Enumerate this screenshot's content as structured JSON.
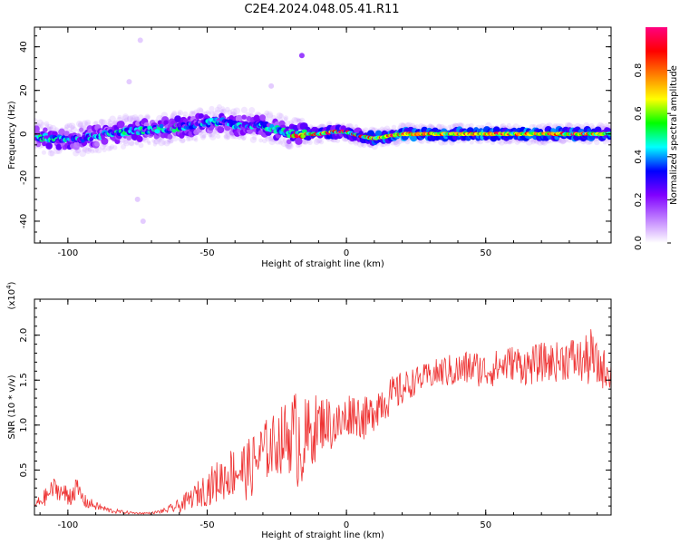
{
  "title": "C2E4.2024.048.05.41.R11",
  "chart_data": [
    {
      "type": "heatmap",
      "xlabel": "Height of straight line (km)",
      "ylabel": "Frequency (Hz)",
      "xlim": [
        -112,
        95
      ],
      "ylim": [
        -50,
        49
      ],
      "x_ticks": [
        -100,
        -50,
        0,
        50
      ],
      "y_ticks": [
        -40,
        -20,
        0,
        20,
        40
      ],
      "colorbar": {
        "label": "Normalized spectral amplitude",
        "range": [
          0.0,
          1.0
        ],
        "ticks": [
          0.0,
          0.2,
          0.4,
          0.6,
          0.8
        ],
        "colors": [
          "#ffffff",
          "#c080ff",
          "#8000ff",
          "#0000ff",
          "#00ffff",
          "#00ff00",
          "#ffff00",
          "#ff8000",
          "#ff0000",
          "#ff0080"
        ]
      },
      "ridge": {
        "x": [
          -112,
          -100,
          -90,
          -80,
          -70,
          -60,
          -50,
          -45,
          -40,
          -30,
          -25,
          -20,
          -15,
          -10,
          -5,
          0,
          5,
          10,
          20,
          30,
          40,
          50,
          60,
          70,
          80,
          95
        ],
        "y": [
          -1,
          -3,
          -1,
          1,
          2,
          3,
          5,
          6,
          4,
          4,
          2,
          0,
          0,
          0,
          1,
          1,
          -1,
          -2,
          0,
          0,
          0,
          0,
          0,
          0,
          0,
          0
        ],
        "amplitude": [
          0.35,
          0.35,
          0.3,
          0.35,
          0.35,
          0.35,
          0.3,
          0.35,
          0.3,
          0.35,
          0.35,
          0.4,
          0.5,
          0.55,
          0.5,
          0.45,
          0.45,
          0.55,
          0.65,
          0.65,
          0.6,
          0.65,
          0.6,
          0.65,
          0.6,
          0.55
        ]
      },
      "outliers": [
        {
          "x": -16,
          "y": 36,
          "amplitude": 0.3
        },
        {
          "x": -74,
          "y": 43,
          "amplitude": 0.05
        },
        {
          "x": -78,
          "y": 24,
          "amplitude": 0.05
        },
        {
          "x": -27,
          "y": 22,
          "amplitude": 0.05
        },
        {
          "x": -75,
          "y": -30,
          "amplitude": 0.05
        },
        {
          "x": -73,
          "y": -40,
          "amplitude": 0.05
        }
      ]
    },
    {
      "type": "line",
      "xlabel": "Height of straight line (km)",
      "ylabel": "SNR (10 * v/v)",
      "multiplier_label": "(x10",
      "multiplier_exponent": "4",
      "multiplier_close": ")",
      "xlim": [
        -112,
        95
      ],
      "ylim": [
        0,
        2.4
      ],
      "x_ticks": [
        -100,
        -50,
        0,
        50
      ],
      "y_ticks": [
        0.5,
        1.0,
        1.5,
        2.0
      ],
      "y_tick_labels": [
        "0.5",
        "1.0",
        "1.5",
        "2.0"
      ],
      "color": "#ee3333",
      "series": [
        {
          "x": [
            -112,
            -108,
            -105,
            -102,
            -100,
            -97,
            -94,
            -90,
            -85,
            -80,
            -75,
            -70,
            -65,
            -60,
            -55,
            -50,
            -45,
            -40,
            -35,
            -30,
            -25,
            -20,
            -17,
            -15,
            -12,
            -10,
            -8,
            -5,
            -2,
            0,
            2,
            5,
            8,
            10,
            12,
            15,
            20,
            25,
            30,
            35,
            40,
            45,
            50,
            55,
            60,
            65,
            70,
            75,
            80,
            85,
            88,
            90,
            95
          ],
          "y": [
            0.1,
            0.2,
            0.3,
            0.25,
            0.2,
            0.3,
            0.15,
            0.1,
            0.05,
            0.03,
            0.02,
            0.02,
            0.05,
            0.1,
            0.2,
            0.3,
            0.4,
            0.5,
            0.5,
            0.7,
            0.8,
            0.9,
            0.85,
            0.8,
            0.95,
            1.0,
            1.05,
            1.0,
            1.0,
            1.1,
            1.15,
            1.1,
            1.05,
            1.2,
            1.25,
            1.3,
            1.4,
            1.5,
            1.55,
            1.6,
            1.6,
            1.65,
            1.6,
            1.65,
            1.7,
            1.65,
            1.7,
            1.7,
            1.75,
            1.7,
            1.75,
            1.65,
            1.6
          ],
          "noise": [
            0.05,
            0.1,
            0.12,
            0.1,
            0.15,
            0.12,
            0.08,
            0.05,
            0.03,
            0.02,
            0.01,
            0.01,
            0.03,
            0.08,
            0.12,
            0.2,
            0.25,
            0.3,
            0.35,
            0.35,
            0.35,
            0.45,
            0.6,
            0.5,
            0.4,
            0.35,
            0.3,
            0.3,
            0.28,
            0.25,
            0.25,
            0.25,
            0.25,
            0.25,
            0.25,
            0.22,
            0.2,
            0.15,
            0.15,
            0.18,
            0.2,
            0.2,
            0.2,
            0.2,
            0.2,
            0.22,
            0.22,
            0.22,
            0.25,
            0.25,
            0.35,
            0.25,
            0.2
          ]
        }
      ]
    }
  ]
}
